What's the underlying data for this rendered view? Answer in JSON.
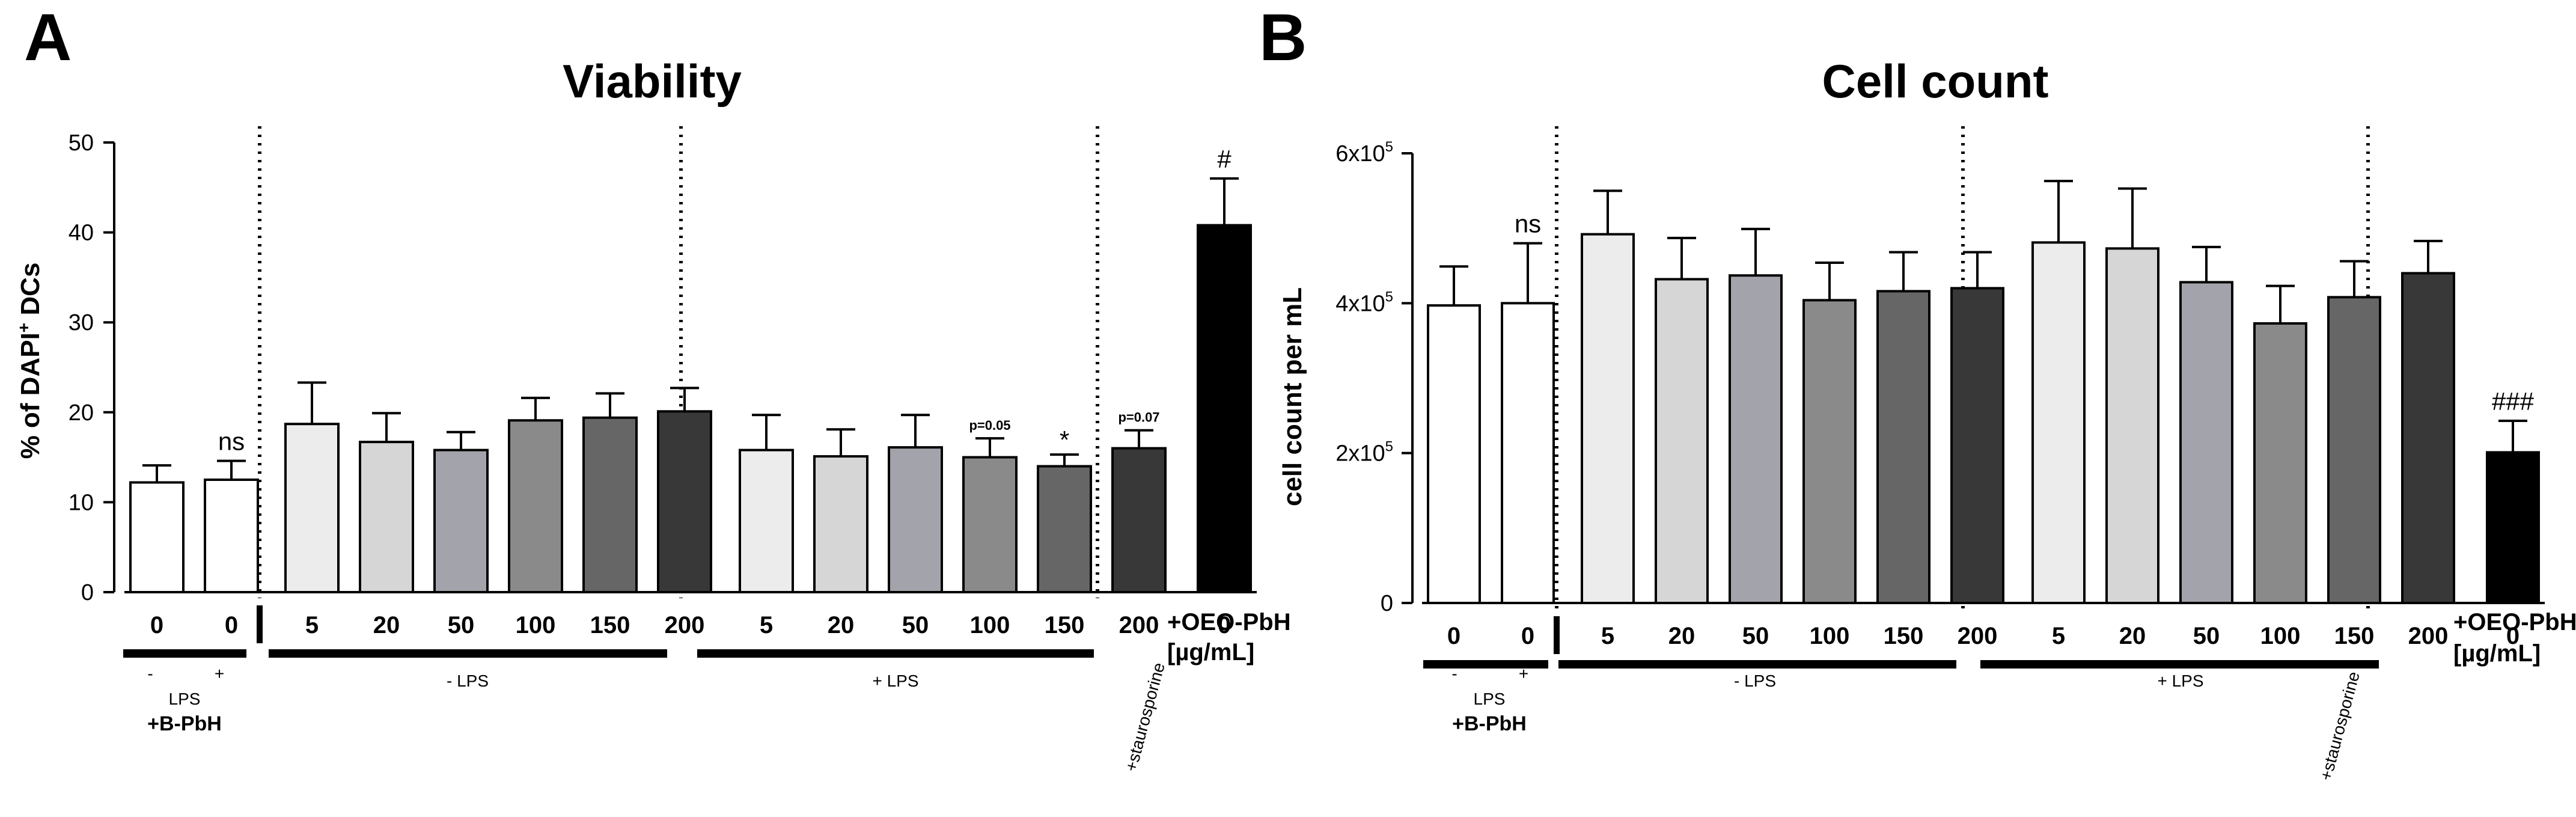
{
  "panels": [
    {
      "letter": "A",
      "title": "Viability",
      "ylabel_main": "% of DAPI",
      "ylabel_sup": "+",
      "ylabel_tail": " DCs",
      "dose_header": "+OEO-PbH",
      "dose_unit": "[µg/mL]",
      "group_neg_lps": "- LPS",
      "group_pos_lps": "+ LPS",
      "control_lps": "LPS",
      "control_minus": "-",
      "control_plus": "+",
      "control_agent": "+B-PbH",
      "staurosporine": "+staurosporine",
      "chart_data": {
        "type": "bar",
        "title": "Viability",
        "ylabel": "% of DAPI+ DCs",
        "ylim": [
          0,
          50
        ],
        "yticks": [
          "0",
          "10",
          "20",
          "30",
          "40",
          "50"
        ],
        "categories": [
          "0",
          "0",
          "5",
          "20",
          "50",
          "100",
          "150",
          "200",
          "5",
          "20",
          "50",
          "100",
          "150",
          "200",
          "0"
        ],
        "values": [
          12.2,
          12.5,
          18.7,
          16.7,
          15.8,
          19.1,
          19.4,
          20.1,
          15.8,
          15.1,
          16.1,
          15.0,
          14.0,
          16.0,
          40.8
        ],
        "errors": [
          1.9,
          2.1,
          4.6,
          3.2,
          2.0,
          2.5,
          2.7,
          2.6,
          3.9,
          3.0,
          3.6,
          2.1,
          1.3,
          2.0,
          5.2
        ],
        "fills": [
          "#ffffff",
          "#ffffff",
          "#ececec",
          "#d6d6d6",
          "#a3a3ab",
          "#8a8a8a",
          "#666666",
          "#383838",
          "#ececec",
          "#d6d6d6",
          "#a3a3ab",
          "#8a8a8a",
          "#666666",
          "#383838",
          "#000000"
        ],
        "annotations": [
          "",
          "ns",
          "",
          "",
          "",
          "",
          "",
          "",
          "",
          "",
          "",
          "p=0.05",
          "*",
          "p=0.07",
          "#"
        ]
      }
    },
    {
      "letter": "B",
      "title": "Cell count",
      "ylabel_main": "cell count per mL",
      "dose_header": "+OEO-PbH",
      "dose_unit": "[µg/mL]",
      "group_neg_lps": "- LPS",
      "group_pos_lps": "+ LPS",
      "control_lps": "LPS",
      "control_minus": "-",
      "control_plus": "+",
      "control_agent": "+B-PbH",
      "staurosporine": "+staurosporine",
      "chart_data": {
        "type": "bar",
        "title": "Cell count",
        "ylabel": "cell count per mL",
        "ylim": [
          0,
          600000
        ],
        "yticks": [
          "0",
          "2x10",
          "4x10",
          "6x10"
        ],
        "ytick_exponent": "5",
        "categories": [
          "0",
          "0",
          "5",
          "20",
          "50",
          "100",
          "150",
          "200",
          "5",
          "20",
          "50",
          "100",
          "150",
          "200",
          "0"
        ],
        "values": [
          397000,
          400000,
          492000,
          432000,
          437000,
          404000,
          416000,
          420000,
          481000,
          473000,
          428000,
          373000,
          408000,
          440000,
          201000
        ],
        "errors": [
          52000,
          80000,
          58000,
          55000,
          62000,
          50000,
          52000,
          48000,
          82000,
          80000,
          47000,
          50000,
          48000,
          43000,
          42000
        ],
        "fills": [
          "#ffffff",
          "#ffffff",
          "#ececec",
          "#d6d6d6",
          "#a3a3ab",
          "#8a8a8a",
          "#666666",
          "#383838",
          "#ececec",
          "#d6d6d6",
          "#a3a3ab",
          "#8a8a8a",
          "#666666",
          "#383838",
          "#000000"
        ],
        "annotations": [
          "",
          "ns",
          "",
          "",
          "",
          "",
          "",
          "",
          "",
          "",
          "",
          "",
          "",
          "",
          "###"
        ]
      }
    }
  ]
}
